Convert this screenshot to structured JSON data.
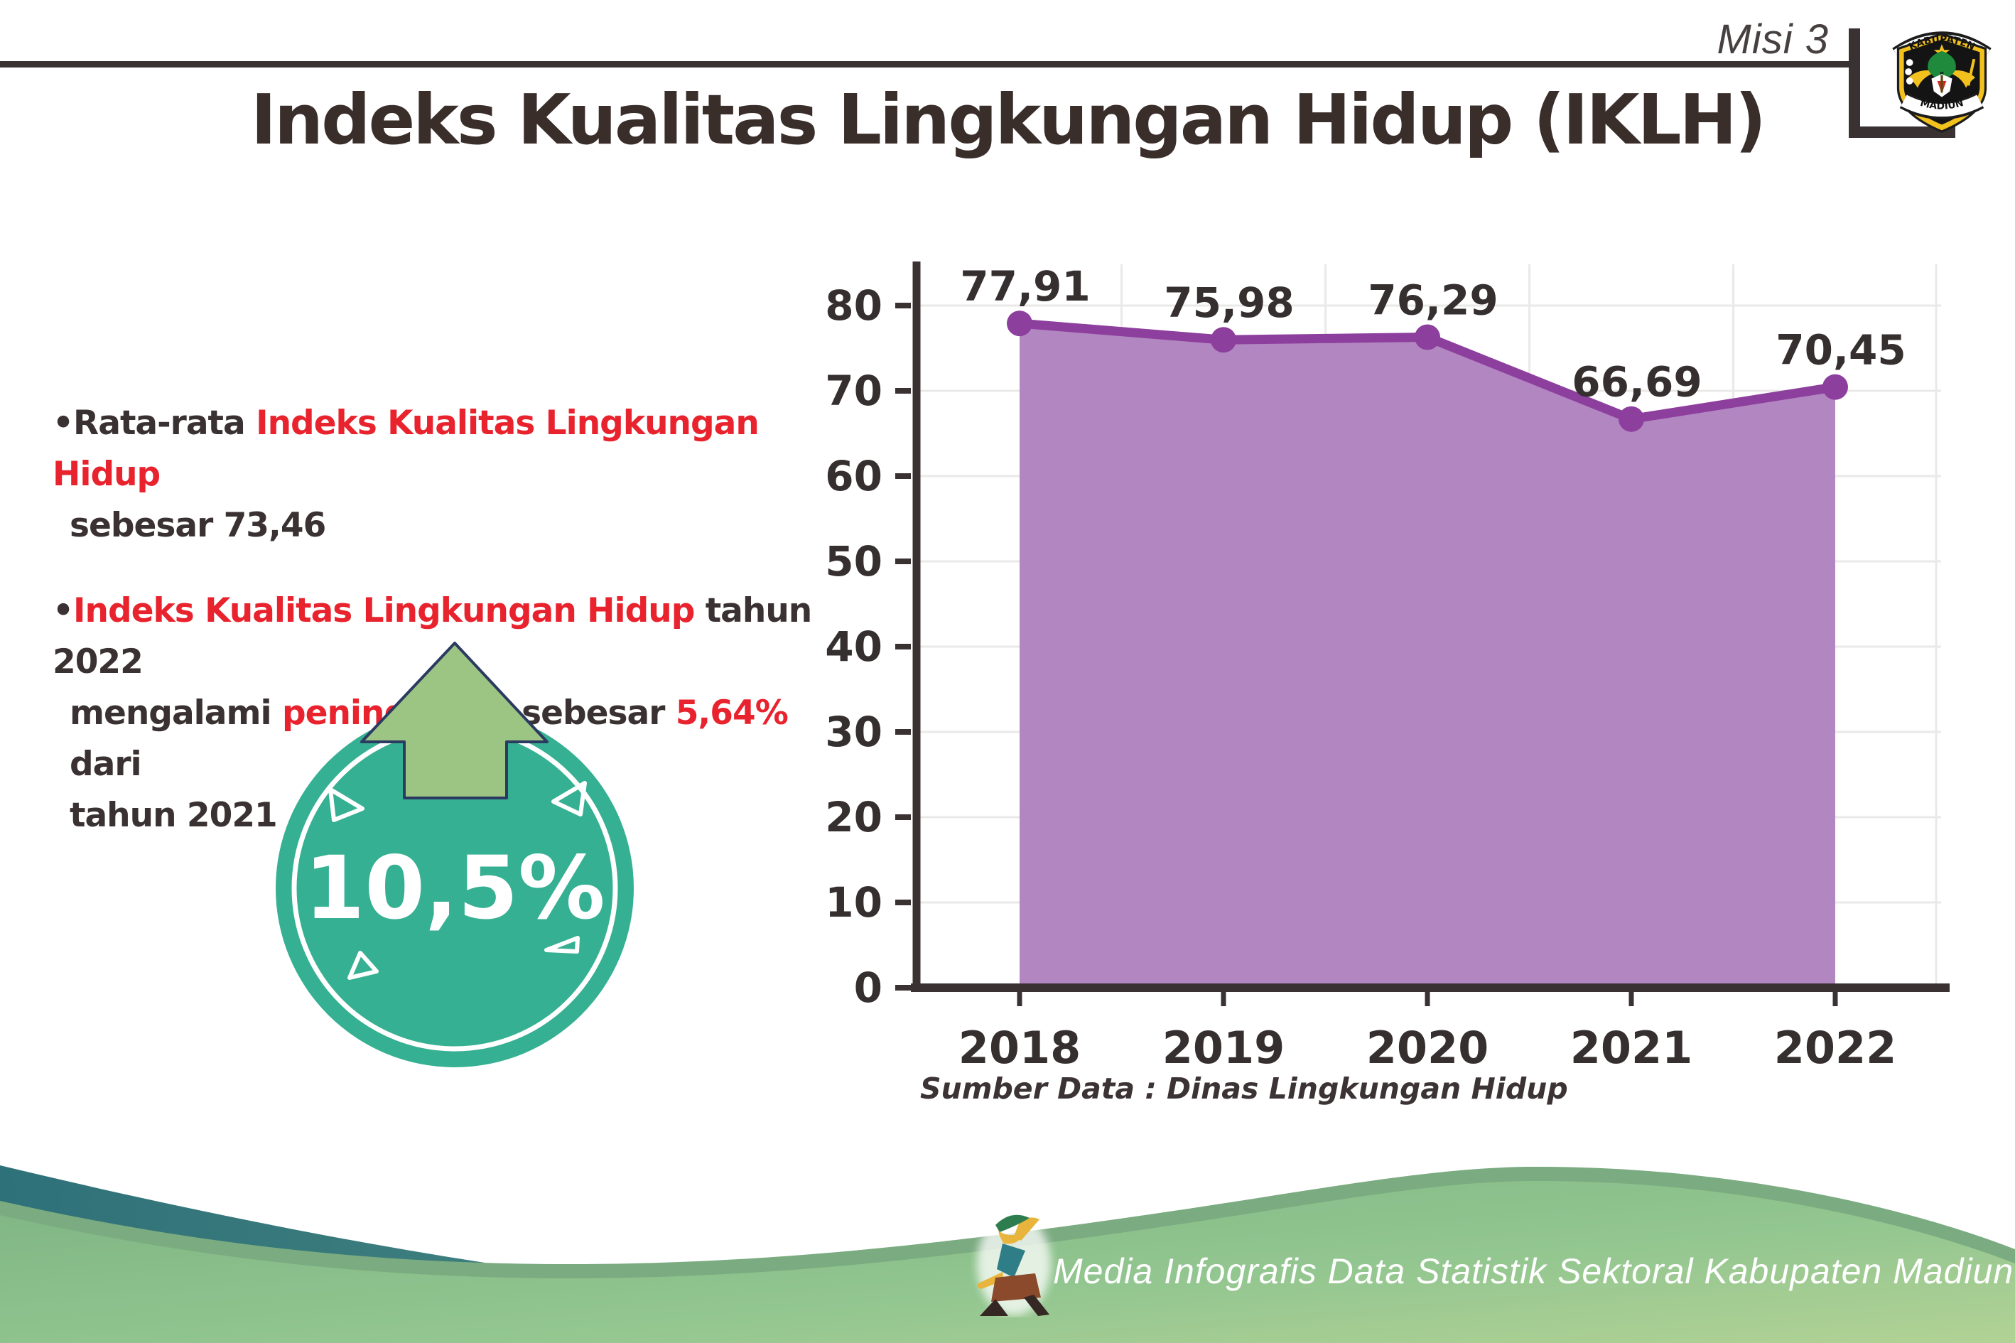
{
  "header": {
    "misi_label": "Misi 3",
    "logo": {
      "top_text": "KABUPATEN",
      "bottom_text": "MADIUN"
    }
  },
  "title": "Indeks Kualitas Lingkungan Hidup (IKLH)",
  "left_panel": {
    "bullet1": {
      "dot": "•",
      "s1": "Rata-rata ",
      "s2": "Indeks Kualitas Lingkungan Hidup",
      "s3": "sebesar 73,46"
    },
    "bullet2": {
      "dot": "•",
      "s1": "Indeks Kualitas Lingkungan Hidup",
      "s2": " tahun 2022",
      "s3": "mengalami ",
      "s4": "peningkatan",
      "s5": " sebesar ",
      "s6": "5,64%",
      "s7": " dari",
      "s8": "tahun 2021"
    },
    "badge": {
      "value": "10,5%"
    }
  },
  "chart_data": {
    "type": "area",
    "title": "",
    "categories": [
      "2018",
      "2019",
      "2020",
      "2021",
      "2022"
    ],
    "series": [
      {
        "name": "IKLH",
        "values": [
          77.91,
          75.98,
          76.29,
          66.69,
          70.45
        ],
        "labels": [
          "77,91",
          "75,98",
          "76,29",
          "66,69",
          "70,45"
        ]
      }
    ],
    "xlabel": "",
    "ylabel": "",
    "ylim": [
      0,
      85
    ],
    "yticks": [
      0,
      10,
      20,
      30,
      40,
      50,
      60,
      70,
      80
    ],
    "grid": true,
    "legend": false,
    "fill_color": "#b286c1",
    "line_color": "#8d3f9d",
    "marker_color": "#8d3f9d",
    "label_color": "#362f30",
    "axis_color": "#3a3132",
    "grid_color": "#ebe8e8"
  },
  "source_note": "Sumber Data : Dinas Lingkungan Hidup",
  "footer": {
    "text": "Media Infografis Data Statistik Sektoral Kabupaten Madiun |"
  },
  "colors": {
    "dark_text": "#3a3132",
    "accent_red": "#e8232e",
    "badge_teal": "#36b092",
    "arrow_green": "#9cc483",
    "arrow_outline": "#2b3a60",
    "footer_teal": "#2f7179",
    "footer_green": "#8ec48d"
  }
}
